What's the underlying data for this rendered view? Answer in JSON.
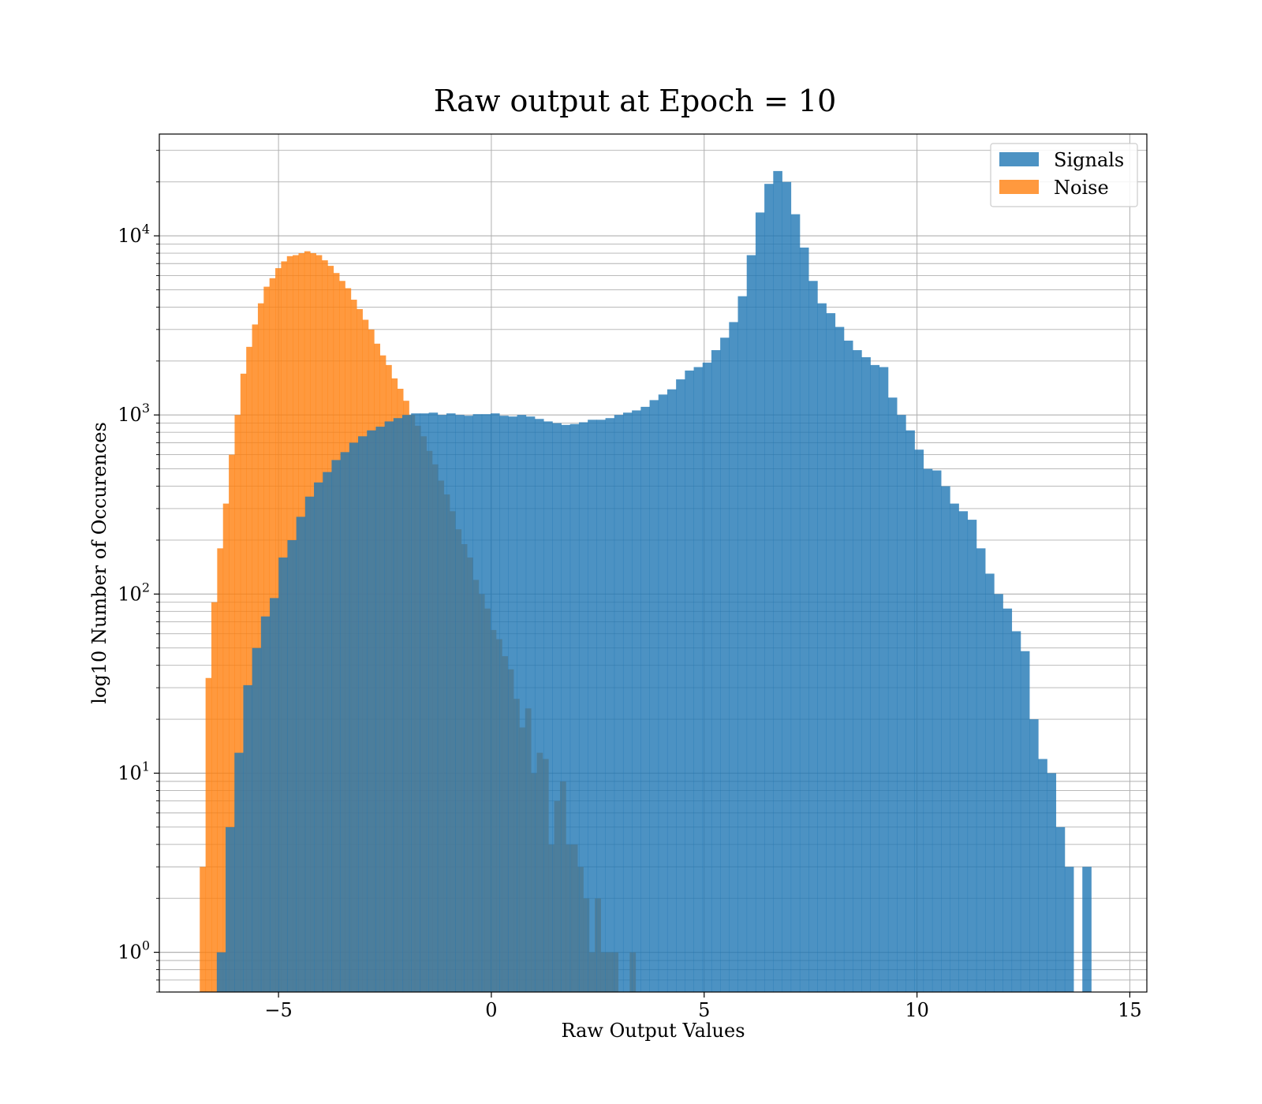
{
  "chart_data": {
    "type": "histogram",
    "title": "Raw output at Epoch = 10",
    "xlabel": "Raw Output Values",
    "ylabel": "log10 Number of Occurences",
    "yscale": "log",
    "xlim": [
      -7.8,
      15.4
    ],
    "ylim": [
      0.6,
      37000
    ],
    "x_ticks": [
      -5,
      0,
      5,
      10,
      15
    ],
    "x_tick_labels": [
      "−5",
      "0",
      "5",
      "10",
      "15"
    ],
    "y_ticks": [
      1,
      10,
      100,
      1000,
      10000
    ],
    "y_tick_labels": [
      {
        "base": "10",
        "exp": "0"
      },
      {
        "base": "10",
        "exp": "1"
      },
      {
        "base": "10",
        "exp": "2"
      },
      {
        "base": "10",
        "exp": "3"
      },
      {
        "base": "10",
        "exp": "4"
      }
    ],
    "grid": true,
    "legend": {
      "position": "upper right"
    },
    "series": [
      {
        "name": "Signals",
        "color": "#1f77b4",
        "opacity": 0.8,
        "bin_start": -6.45,
        "bin_width": 0.2075,
        "counts": [
          1,
          5,
          13,
          31,
          50,
          75,
          95,
          160,
          200,
          270,
          350,
          420,
          480,
          560,
          620,
          700,
          760,
          820,
          860,
          920,
          960,
          1000,
          1020,
          1020,
          1030,
          1000,
          1020,
          1000,
          990,
          1010,
          1010,
          1020,
          990,
          980,
          1000,
          980,
          950,
          920,
          900,
          880,
          890,
          910,
          940,
          940,
          960,
          1000,
          1030,
          1060,
          1110,
          1210,
          1300,
          1390,
          1580,
          1770,
          1850,
          1960,
          2300,
          2700,
          3300,
          4600,
          7800,
          13500,
          19500,
          23000,
          20000,
          13200,
          8600,
          5600,
          4200,
          3700,
          3100,
          2600,
          2300,
          2100,
          1900,
          1850,
          1250,
          1000,
          820,
          640,
          500,
          490,
          400,
          320,
          290,
          260,
          180,
          130,
          100,
          83,
          62,
          48,
          20,
          12,
          10,
          5,
          3,
          0,
          3
        ]
      },
      {
        "name": "Noise",
        "color": "#ff7f0e",
        "opacity": 0.8,
        "bin_start": -6.85,
        "bin_width": 0.1365,
        "counts": [
          3,
          34,
          90,
          180,
          320,
          600,
          1000,
          1700,
          2400,
          3200,
          4200,
          5200,
          5800,
          6600,
          7200,
          7700,
          7800,
          8000,
          8200,
          8000,
          7800,
          7300,
          6800,
          6200,
          5600,
          5100,
          4400,
          3900,
          3400,
          3000,
          2500,
          2150,
          1900,
          1600,
          1400,
          1200,
          1000,
          870,
          760,
          630,
          530,
          430,
          360,
          290,
          230,
          190,
          160,
          120,
          100,
          83,
          63,
          56,
          45,
          38,
          26,
          18,
          23,
          10,
          13,
          12,
          4,
          7,
          9,
          4,
          4,
          3,
          2,
          1,
          2,
          1,
          1,
          1,
          0,
          0,
          1
        ]
      }
    ]
  }
}
